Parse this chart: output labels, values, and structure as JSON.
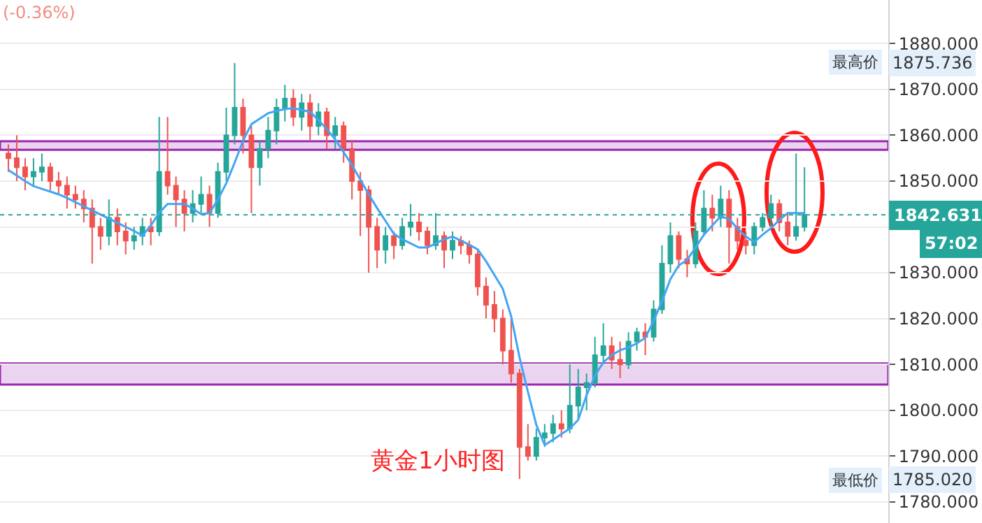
{
  "chart_data": {
    "type": "candlestick",
    "title": "黄金1小时图",
    "categories": [
      null,
      null,
      null,
      null,
      null,
      null,
      null,
      null,
      null,
      null,
      null,
      null,
      null,
      null,
      null,
      null,
      null,
      null,
      null,
      null,
      null,
      null,
      null,
      null,
      null,
      null,
      null,
      null,
      null,
      null,
      null,
      null,
      null,
      null,
      null,
      null,
      null,
      null,
      null,
      null,
      null,
      null,
      null,
      null,
      null,
      null,
      null,
      null,
      null,
      null,
      null,
      null,
      null,
      null,
      null,
      null,
      null,
      null,
      null,
      null,
      null,
      null,
      null,
      null,
      null,
      null,
      null,
      null,
      null,
      null,
      null,
      null,
      null,
      null,
      null,
      null,
      null,
      null,
      null,
      null,
      null,
      null,
      null,
      null,
      null,
      null,
      null,
      null,
      null,
      null,
      null,
      null,
      null,
      null,
      null,
      null
    ],
    "ohlc": [
      [
        1856,
        1858,
        1852,
        1855
      ],
      [
        1855,
        1860,
        1850,
        1853
      ],
      [
        1853,
        1855,
        1848,
        1851
      ],
      [
        1851,
        1855,
        1849,
        1852
      ],
      [
        1852,
        1856,
        1850,
        1853
      ],
      [
        1853,
        1854,
        1848,
        1850
      ],
      [
        1850,
        1852,
        1847,
        1849
      ],
      [
        1849,
        1851,
        1844,
        1847
      ],
      [
        1847,
        1849,
        1844,
        1846
      ],
      [
        1846,
        1848,
        1841,
        1844
      ],
      [
        1844,
        1846,
        1832,
        1840
      ],
      [
        1840,
        1842,
        1835,
        1838
      ],
      [
        1838,
        1846,
        1836,
        1842
      ],
      [
        1842,
        1844,
        1836,
        1839
      ],
      [
        1839,
        1841,
        1834,
        1837
      ],
      [
        1837,
        1840,
        1835,
        1838
      ],
      [
        1838,
        1842,
        1836,
        1840
      ],
      [
        1840,
        1842,
        1836,
        1839
      ],
      [
        1839,
        1864,
        1838,
        1852
      ],
      [
        1852,
        1864,
        1847,
        1849
      ],
      [
        1849,
        1851,
        1840,
        1846
      ],
      [
        1846,
        1848,
        1839,
        1843
      ],
      [
        1843,
        1848,
        1841,
        1845
      ],
      [
        1845,
        1851,
        1843,
        1847
      ],
      [
        1847,
        1849,
        1840,
        1843
      ],
      [
        1843,
        1854,
        1842,
        1852
      ],
      [
        1852,
        1866,
        1850,
        1860
      ],
      [
        1860,
        1875.736,
        1858,
        1866
      ],
      [
        1866,
        1868,
        1856,
        1860
      ],
      [
        1860,
        1862,
        1843,
        1853
      ],
      [
        1853,
        1859,
        1849,
        1857
      ],
      [
        1857,
        1864,
        1855,
        1861
      ],
      [
        1861,
        1868,
        1858,
        1866
      ],
      [
        1866,
        1871,
        1863,
        1868
      ],
      [
        1868,
        1870,
        1862,
        1864
      ],
      [
        1864,
        1869,
        1861,
        1867
      ],
      [
        1867,
        1869,
        1859,
        1862
      ],
      [
        1862,
        1867,
        1860,
        1865
      ],
      [
        1865,
        1866,
        1857,
        1860
      ],
      [
        1860,
        1864,
        1857,
        1862
      ],
      [
        1862,
        1863,
        1854,
        1857
      ],
      [
        1857,
        1859,
        1846,
        1850
      ],
      [
        1850,
        1852,
        1838,
        1848
      ],
      [
        1848,
        1849,
        1830,
        1840
      ],
      [
        1840,
        1842,
        1831,
        1835
      ],
      [
        1835,
        1840,
        1832,
        1838
      ],
      [
        1838,
        1839,
        1833,
        1836
      ],
      [
        1836,
        1842,
        1835,
        1840
      ],
      [
        1840,
        1845,
        1838,
        1841
      ],
      [
        1841,
        1843,
        1837,
        1839
      ],
      [
        1839,
        1840,
        1834,
        1836
      ],
      [
        1836,
        1843,
        1835,
        1838
      ],
      [
        1838,
        1839,
        1831,
        1835
      ],
      [
        1835,
        1839,
        1833,
        1837
      ],
      [
        1837,
        1838,
        1834,
        1836
      ],
      [
        1836,
        1837,
        1832,
        1834
      ],
      [
        1834,
        1835,
        1825,
        1827
      ],
      [
        1827,
        1829,
        1820,
        1823
      ],
      [
        1823,
        1826,
        1817,
        1820
      ],
      [
        1820,
        1822,
        1810,
        1813
      ],
      [
        1813,
        1820,
        1806,
        1808
      ],
      [
        1808,
        1809,
        1785.02,
        1792
      ],
      [
        1792,
        1797,
        1789,
        1790
      ],
      [
        1790,
        1796,
        1789,
        1794
      ],
      [
        1794,
        1797,
        1792,
        1795
      ],
      [
        1795,
        1799,
        1793,
        1797
      ],
      [
        1797,
        1800,
        1794,
        1796
      ],
      [
        1796,
        1810,
        1795,
        1801
      ],
      [
        1801,
        1809,
        1798,
        1805
      ],
      [
        1805,
        1808,
        1800,
        1806
      ],
      [
        1806,
        1816,
        1805,
        1812
      ],
      [
        1812,
        1819,
        1810,
        1814
      ],
      [
        1814,
        1816,
        1809,
        1811
      ],
      [
        1811,
        1815,
        1807,
        1810
      ],
      [
        1810,
        1817,
        1809,
        1815
      ],
      [
        1815,
        1818,
        1813,
        1817
      ],
      [
        1817,
        1819,
        1812,
        1816
      ],
      [
        1816,
        1824,
        1815,
        1822
      ],
      [
        1822,
        1836,
        1821,
        1832
      ],
      [
        1832,
        1841,
        1830,
        1838
      ],
      [
        1838,
        1839,
        1831,
        1833
      ],
      [
        1833,
        1835,
        1829,
        1832
      ],
      [
        1832,
        1841,
        1831,
        1839
      ],
      [
        1839,
        1848,
        1838,
        1844
      ],
      [
        1844,
        1847,
        1839,
        1842
      ],
      [
        1842,
        1849,
        1840,
        1846
      ],
      [
        1846,
        1848,
        1832,
        1840
      ],
      [
        1840,
        1842,
        1835,
        1837
      ],
      [
        1837,
        1839,
        1834,
        1836
      ],
      [
        1836,
        1841,
        1834,
        1840
      ],
      [
        1840,
        1843,
        1839,
        1842
      ],
      [
        1842,
        1847,
        1840,
        1845
      ],
      [
        1845,
        1846,
        1839,
        1841
      ],
      [
        1841,
        1843,
        1836,
        1838
      ],
      [
        1838,
        1856,
        1837,
        1840
      ],
      [
        1840,
        1853,
        1839,
        1842.631
      ]
    ],
    "colors": [
      "#ef5350",
      "#ef5350",
      "#ef5350",
      "#26a69a",
      "#26a69a",
      "#ef5350",
      "#ef5350",
      "#ef5350",
      "#ef5350",
      "#ef5350",
      "#ef5350",
      "#ef5350",
      "#26a69a",
      "#ef5350",
      "#ef5350",
      "#26a69a",
      "#26a69a",
      "#ef5350",
      "#26a69a",
      "#ef5350",
      "#ef5350",
      "#ef5350",
      "#26a69a",
      "#26a69a",
      "#ef5350",
      "#26a69a",
      "#26a69a",
      "#26a69a",
      "#ef5350",
      "#ef5350",
      "#26a69a",
      "#26a69a",
      "#26a69a",
      "#26a69a",
      "#ef5350",
      "#26a69a",
      "#ef5350",
      "#26a69a",
      "#ef5350",
      "#26a69a",
      "#ef5350",
      "#ef5350",
      "#ef5350",
      "#ef5350",
      "#ef5350",
      "#26a69a",
      "#ef5350",
      "#26a69a",
      "#26a69a",
      "#ef5350",
      "#ef5350",
      "#26a69a",
      "#ef5350",
      "#26a69a",
      "#ef5350",
      "#ef5350",
      "#ef5350",
      "#ef5350",
      "#ef5350",
      "#ef5350",
      "#ef5350",
      "#ef5350",
      "#ef5350",
      "#26a69a",
      "#26a69a",
      "#26a69a",
      "#ef5350",
      "#26a69a",
      "#26a69a",
      "#26a69a",
      "#26a69a",
      "#26a69a",
      "#ef5350",
      "#ef5350",
      "#26a69a",
      "#26a69a",
      "#ef5350",
      "#26a69a",
      "#26a69a",
      "#26a69a",
      "#ef5350",
      "#ef5350",
      "#26a69a",
      "#26a69a",
      "#ef5350",
      "#26a69a",
      "#ef5350",
      "#ef5350",
      "#ef5350",
      "#26a69a",
      "#26a69a",
      "#26a69a",
      "#ef5350",
      "#ef5350",
      "#26a69a",
      "#26a69a"
    ],
    "series": [
      {
        "type": "line",
        "color": "#42a5f5",
        "values": [
          1852.4,
          1851.2,
          1850,
          1848.9,
          1848.3,
          1847.7,
          1847.1,
          1846.3,
          1845.4,
          1844.5,
          1843.6,
          1842.7,
          1841.8,
          1840.9,
          1840,
          1839.1,
          1838.1,
          1840.3,
          1843.1,
          1845,
          1845,
          1845,
          1844,
          1842.8,
          1843,
          1846,
          1849.5,
          1854,
          1858.8,
          1862.4,
          1863.6,
          1864.8,
          1865.3,
          1865.7,
          1865.9,
          1865.5,
          1865.1,
          1863.3,
          1861.3,
          1859.1,
          1856.3,
          1853.5,
          1850.3,
          1847.1,
          1844.1,
          1841.3,
          1838.5,
          1837.3,
          1836.4,
          1835.5,
          1835.5,
          1836.4,
          1837.3,
          1837.9,
          1837,
          1836.1,
          1835.1,
          1832.5,
          1829.5,
          1826.5,
          1820.5,
          1811.5,
          1804,
          1796.8,
          1792.4,
          1793.6,
          1794.8,
          1796,
          1797.9,
          1803.3,
          1807.5,
          1810.5,
          1812,
          1813.1,
          1813.7,
          1814.6,
          1815.8,
          1819.5,
          1823.8,
          1828.6,
          1831.6,
          1832.8,
          1835.5,
          1838.3,
          1840.3,
          1842.3,
          1841.7,
          1839.7,
          1837.9,
          1836.7,
          1838.3,
          1839.7,
          1841.5,
          1843,
          1843,
          1843
        ]
      }
    ],
    "ylim": [
      1775.4,
      1889.5
    ],
    "yticks": [
      {
        "value": 1780,
        "label": "1780.000"
      },
      {
        "value": 1790,
        "label": "1790.000"
      },
      {
        "value": 1800,
        "label": "1800.000"
      },
      {
        "value": 1810,
        "label": "1810.000"
      },
      {
        "value": 1820,
        "label": "1820.000"
      },
      {
        "value": 1830,
        "label": "1830.000"
      },
      {
        "value": 1840,
        "label": null
      },
      {
        "value": 1850,
        "label": "1850.000"
      },
      {
        "value": 1860,
        "label": "1860.000"
      },
      {
        "value": 1870,
        "label": "1870.000"
      },
      {
        "value": 1880,
        "label": "1880.000"
      }
    ],
    "tick_labels": "y",
    "grid": "y",
    "ref_lines": [
      {
        "axis": "y",
        "value": 1842.631,
        "label": "1842.631",
        "color": "#26a69a",
        "line_style": "dotted"
      }
    ],
    "bands": [
      {
        "axis": "y",
        "from": 1856.8,
        "to": 1858.7,
        "color": "#9c27b0"
      },
      {
        "axis": "y",
        "from": 1805.6,
        "to": 1810.2,
        "color": "#9c27b0"
      }
    ],
    "annotations": [
      "最高价",
      "1875.736",
      "最低价",
      "1785.020",
      "57:02",
      "(-0.36%)"
    ]
  }
}
